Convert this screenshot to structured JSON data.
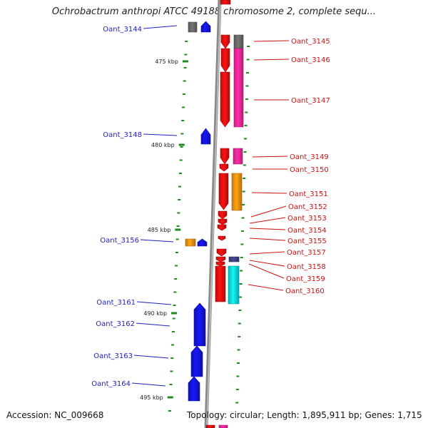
{
  "title": "Ochrobactrum anthropi ATCC 49188 chromosome 2, complete sequ...",
  "footer": {
    "accession": "Accession: NC_009668",
    "topology": "Topology: circular; Length: 1,895,911 bp; Genes: 1,715"
  },
  "colors": {
    "backbone": "#8a8a8a",
    "tick": "#1f8a1f",
    "left_label": "#1f1fbf",
    "right_label": "#cc1111",
    "gray": "#6e6e6e",
    "blue": "#1515e6",
    "red": "#ee1111",
    "pink": "#ff2aa0",
    "orange": "#ff9a10",
    "navy": "#44448a",
    "cyan": "#10e6e6"
  },
  "ruler": [
    {
      "label": "475 kbp"
    },
    {
      "label": "480 kbp"
    },
    {
      "label": "485 kbp"
    },
    {
      "label": "490 kbp"
    },
    {
      "label": "495 kbp"
    }
  ],
  "genes_left": [
    {
      "name": "Oant_3144"
    },
    {
      "name": "Oant_3148"
    },
    {
      "name": "Oant_3156"
    },
    {
      "name": "Oant_3161"
    },
    {
      "name": "Oant_3162"
    },
    {
      "name": "Oant_3163"
    },
    {
      "name": "Oant_3164"
    }
  ],
  "genes_right": [
    {
      "name": "Oant_3145"
    },
    {
      "name": "Oant_3146"
    },
    {
      "name": "Oant_3147"
    },
    {
      "name": "Oant_3149"
    },
    {
      "name": "Oant_3150"
    },
    {
      "name": "Oant_3151"
    },
    {
      "name": "Oant_3152"
    },
    {
      "name": "Oant_3153"
    },
    {
      "name": "Oant_3154"
    },
    {
      "name": "Oant_3155"
    },
    {
      "name": "Oant_3157"
    },
    {
      "name": "Oant_3158"
    },
    {
      "name": "Oant_3159"
    },
    {
      "name": "Oant_3160"
    }
  ]
}
